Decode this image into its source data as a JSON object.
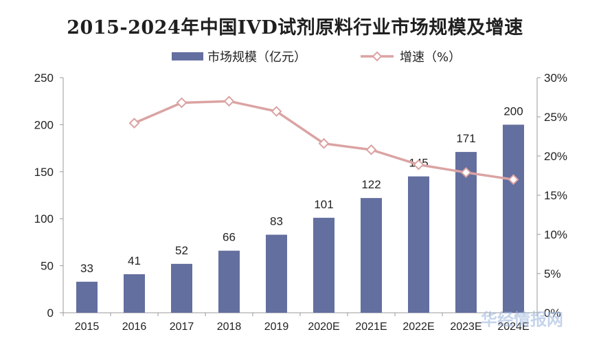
{
  "chart_data": {
    "type": "bar+line",
    "title": "2015-2024年中国IVD试剂原料行业市场规模及增速",
    "categories": [
      "2015",
      "2016",
      "2017",
      "2018",
      "2019",
      "2020E",
      "2021E",
      "2022E",
      "2023E",
      "2024E"
    ],
    "series": [
      {
        "name": "市场规模（亿元）",
        "type": "bar",
        "axis": "left",
        "values": [
          33,
          41,
          52,
          66,
          83,
          101,
          122,
          145,
          171,
          200
        ]
      },
      {
        "name": "增速（%）",
        "type": "line",
        "axis": "right",
        "values": [
          null,
          24.2,
          26.8,
          27.0,
          25.7,
          21.6,
          20.8,
          18.9,
          17.9,
          17.0
        ]
      }
    ],
    "y_left": {
      "ylim": [
        0,
        250
      ],
      "ticks": [
        "0",
        "50",
        "100",
        "150",
        "200",
        "250"
      ]
    },
    "y_right": {
      "ylim": [
        0,
        30
      ],
      "ticks": [
        "0%",
        "5%",
        "10%",
        "15%",
        "20%",
        "25%",
        "30%"
      ]
    },
    "legend": "top-center",
    "grid": false,
    "colors": {
      "bar": "#636f9e",
      "line": "#dba3a3",
      "marker_fill": "#ffffff"
    }
  },
  "watermark": {
    "text": "华经情报网"
  }
}
